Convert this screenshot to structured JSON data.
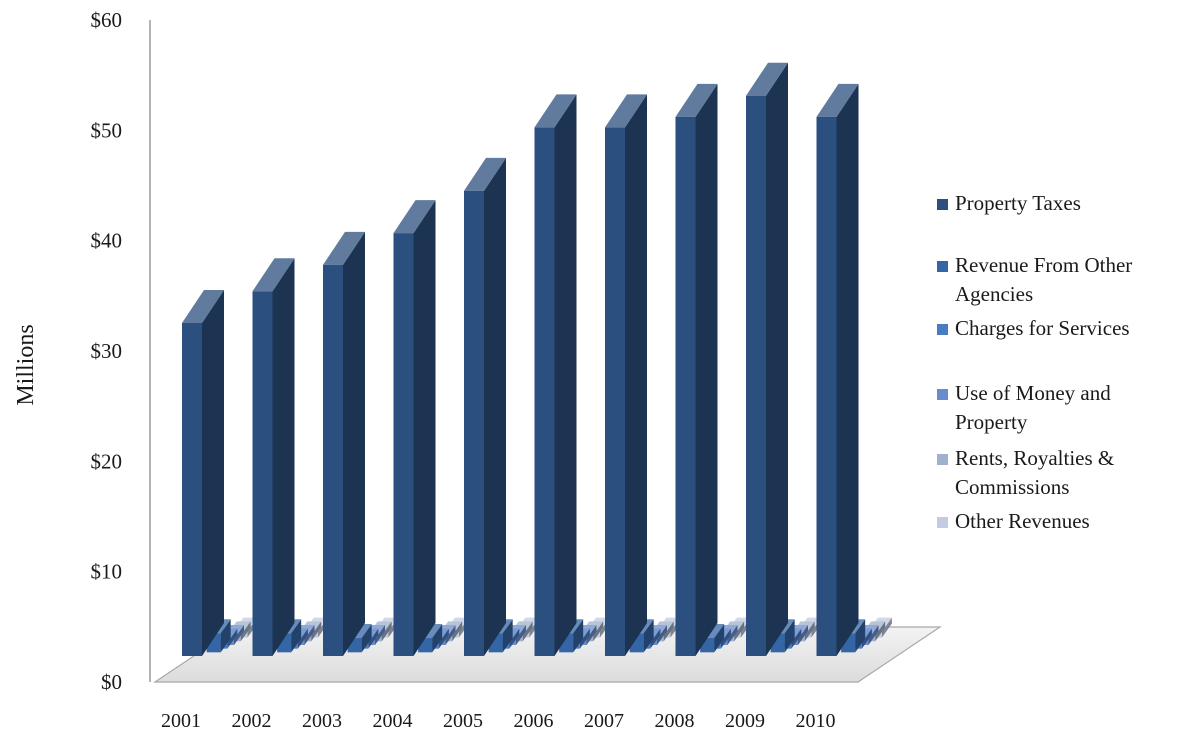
{
  "chart_data": {
    "type": "bar",
    "title": "",
    "xlabel": "",
    "ylabel": "Millions",
    "ylim": [
      0,
      60
    ],
    "yticks": [
      "$0",
      "$10",
      "$20",
      "$30",
      "$40",
      "$50",
      "$60"
    ],
    "categories": [
      "2001",
      "2002",
      "2003",
      "2004",
      "2005",
      "2006",
      "2007",
      "2008",
      "2009",
      "2010"
    ],
    "legend_position": "right",
    "grid": false,
    "series": [
      {
        "name": "Property Taxes",
        "color": "#2b4f7e",
        "values": [
          31.5,
          34.5,
          37.0,
          40.0,
          44.0,
          50.0,
          50.0,
          51.0,
          53.0,
          51.0
        ]
      },
      {
        "name": "Revenue From Other Agencies",
        "color": "#3465a4",
        "values": [
          2.0,
          2.0,
          1.5,
          1.5,
          2.0,
          2.0,
          2.0,
          1.5,
          2.0,
          2.0
        ]
      },
      {
        "name": "Charges for Services",
        "color": "#4a7cc4",
        "values": [
          0.5,
          0.5,
          0.5,
          0.5,
          0.5,
          0.5,
          0.5,
          0.5,
          0.5,
          0.5
        ]
      },
      {
        "name": "Use of Money and Property",
        "color": "#6b8ccc",
        "values": [
          0.3,
          0.3,
          0.3,
          0.3,
          0.3,
          0.3,
          0.3,
          0.3,
          0.3,
          0.3
        ]
      },
      {
        "name": "Rents, Royalties & Commissions",
        "color": "#9fb1cc",
        "values": [
          0.2,
          0.2,
          0.2,
          0.2,
          0.2,
          0.2,
          0.2,
          0.2,
          0.2,
          0.2
        ]
      },
      {
        "name": "Other Revenues",
        "color": "#c3cbe0",
        "values": [
          0.1,
          0.1,
          0.1,
          0.1,
          0.1,
          0.1,
          0.1,
          0.1,
          0.1,
          0.1
        ]
      }
    ]
  }
}
